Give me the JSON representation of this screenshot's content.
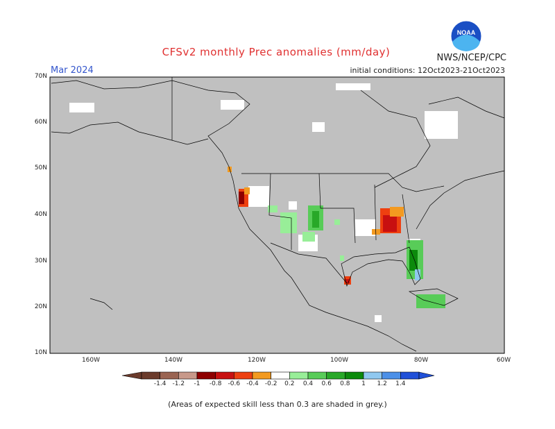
{
  "title": "CFSv2 monthly Prec anomalies (mm/day)",
  "org": "NWS/NCEP/CPC",
  "logo_text": "NOAA",
  "valid_month": "Mar 2024",
  "initial_conditions": "initial conditions: 12Oct2023-21Oct2023",
  "lat_labels": [
    "70N",
    "60N",
    "50N",
    "40N",
    "30N",
    "20N",
    "10N"
  ],
  "lon_labels": [
    "160W",
    "140W",
    "120W",
    "100W",
    "80W",
    "60W"
  ],
  "colorbar": {
    "labels": [
      "-1.4",
      "-1.2",
      "-1",
      "-0.8",
      "-0.6",
      "-0.4",
      "-0.2",
      "0.2",
      "0.4",
      "0.6",
      "0.8",
      "1",
      "1.2",
      "1.4"
    ],
    "colors": [
      "#6b3b2c",
      "#9a6452",
      "#c8998a",
      "#8e0000",
      "#c81010",
      "#ee4010",
      "#f39a20",
      "#ffffff",
      "#98ee98",
      "#58cc58",
      "#28a828",
      "#0c8a0c",
      "#90c8f0",
      "#4c90e8",
      "#2050d8"
    ]
  },
  "colors": {
    "skill_mask": "#c0c0c0",
    "title": "#e03030",
    "month": "#3355cc",
    "dry": "#ee4010",
    "wet": "#28a828"
  },
  "note": "(Areas of expected skill less than 0.3 are shaded in grey.)"
}
